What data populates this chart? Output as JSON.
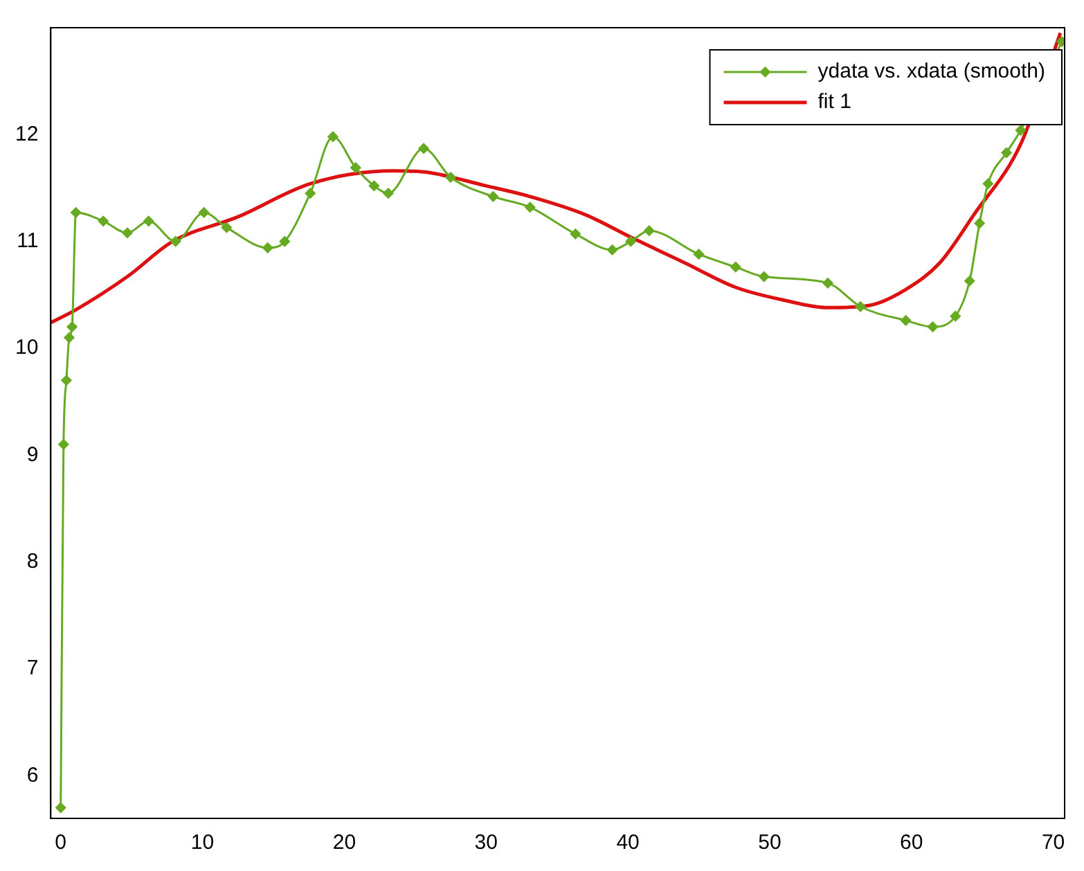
{
  "chart_data": {
    "type": "line",
    "xlim": [
      -0.7,
      70.8
    ],
    "ylim": [
      5.6,
      13.0
    ],
    "xticks": [
      0,
      10,
      20,
      30,
      40,
      50,
      60,
      70
    ],
    "yticks": [
      6,
      7,
      8,
      9,
      10,
      11,
      12
    ],
    "grid": false,
    "legend": "top right",
    "series": [
      {
        "name": "ydata vs. xdata (smooth)",
        "color": "#66aa22",
        "marker": "diamond",
        "x": [
          0,
          0.2,
          0.4,
          0.6,
          0.8,
          1.07,
          3.0,
          4.7,
          6.2,
          8.1,
          10.1,
          11.7,
          14.6,
          15.8,
          17.6,
          19.2,
          20.8,
          22.1,
          23.1,
          25.6,
          27.5,
          30.5,
          33.1,
          36.3,
          38.9,
          40.2,
          41.5,
          45.0,
          47.6,
          49.6,
          54.1,
          56.4,
          59.6,
          61.5,
          63.1,
          64.1,
          64.8,
          65.4,
          66.7,
          67.7,
          69.3,
          70.6
        ],
        "values": [
          5.7,
          9.1,
          9.7,
          10.1,
          10.2,
          11.27,
          11.19,
          11.08,
          11.19,
          11.0,
          11.27,
          11.13,
          10.94,
          11.0,
          11.45,
          11.98,
          11.69,
          11.52,
          11.45,
          11.87,
          11.6,
          11.42,
          11.32,
          11.07,
          10.92,
          11.0,
          11.1,
          10.88,
          10.76,
          10.67,
          10.61,
          10.39,
          10.26,
          10.2,
          10.3,
          10.63,
          11.17,
          11.54,
          11.83,
          12.04,
          null,
          12.87
        ]
      },
      {
        "name": "fit 1",
        "color": "#dd1111",
        "marker": "none",
        "x": [
          -0.7,
          1.07,
          4.7,
          7.9,
          12.5,
          17.6,
          23.4,
          25.6,
          30.0,
          33.1,
          37.0,
          40.2,
          44.0,
          47.6,
          51.0,
          54.1,
          57.0,
          59.6,
          62.0,
          64.4,
          67.7,
          70.5
        ],
        "values": [
          10.24,
          10.36,
          10.67,
          11.0,
          11.23,
          11.54,
          11.66,
          11.65,
          11.52,
          11.42,
          11.25,
          11.04,
          10.8,
          10.57,
          10.45,
          10.38,
          10.4,
          10.55,
          10.8,
          11.25,
          11.91,
          12.95
        ]
      }
    ]
  }
}
